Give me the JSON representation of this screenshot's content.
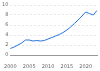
{
  "chart_data": {
    "type": "line",
    "categories": [
      "2000",
      null,
      null,
      null,
      null,
      "2005",
      null,
      null,
      null,
      null,
      "2010",
      null,
      null,
      null,
      null,
      "2015",
      null,
      null,
      null,
      null,
      "2020",
      null,
      null,
      null
    ],
    "values": [
      1.3,
      1.6,
      2.0,
      2.4,
      3.0,
      3.0,
      2.8,
      2.9,
      2.8,
      2.9,
      3.2,
      3.5,
      3.8,
      4.1,
      4.5,
      5.0,
      5.6,
      6.3,
      7.0,
      7.8,
      8.6,
      8.3,
      8.0,
      8.9
    ],
    "color": "#2876dd",
    "ylim": [
      0,
      10
    ],
    "yticks": [
      0,
      2,
      4,
      6,
      8,
      10
    ],
    "grid": true
  }
}
